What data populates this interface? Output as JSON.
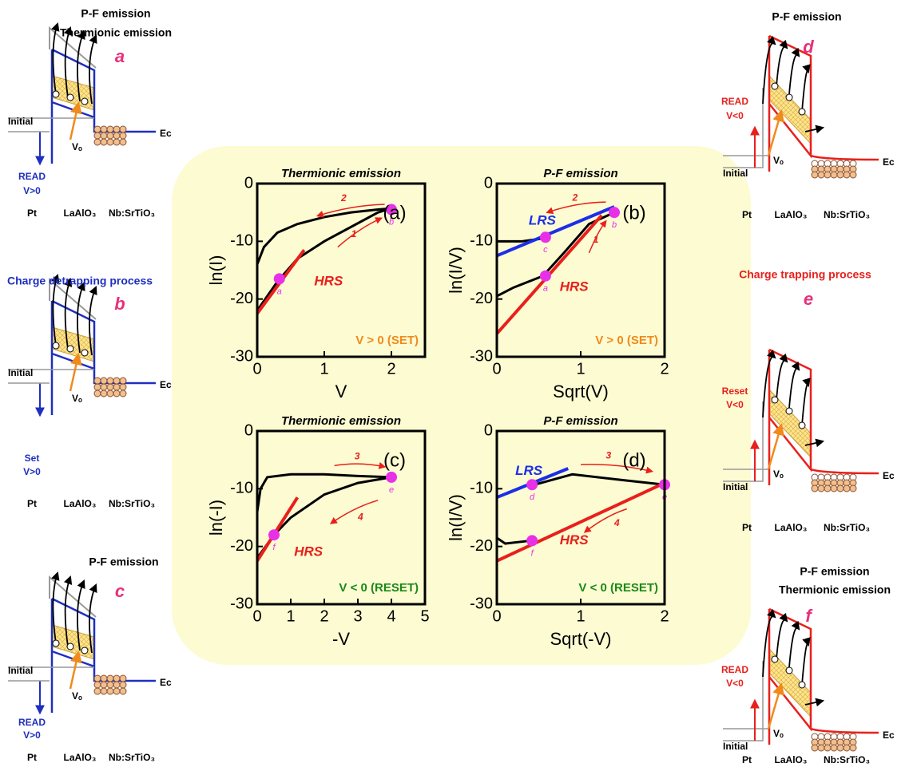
{
  "chart_data": [
    {
      "type": "line",
      "title": "Thermionic emission",
      "panel": "(a)",
      "xlabel": "V",
      "ylabel": "ln(I)",
      "xlim": [
        0,
        2.5
      ],
      "ylim": [
        -30,
        0
      ],
      "xticks": [
        0,
        1,
        2
      ],
      "yticks": [
        -30,
        -20,
        -10,
        0
      ],
      "regime": "V > 0 (SET)",
      "regime_color": "#f08a1c",
      "sweep_labels": [
        "2",
        "1"
      ],
      "series": [
        {
          "color": "#000000",
          "x": [
            0,
            0.1,
            0.3,
            0.6,
            1,
            1.4,
            1.8,
            2.0
          ],
          "values": [
            -14,
            -11,
            -8.5,
            -7,
            -5.8,
            -5,
            -4.5,
            -4.3
          ]
        },
        {
          "color": "#000000",
          "x": [
            0,
            0.3,
            0.6,
            1,
            1.4,
            1.8,
            2.0
          ],
          "values": [
            -22,
            -17,
            -13,
            -10,
            -7.5,
            -5,
            -4.3
          ]
        },
        {
          "name": "HRS",
          "color": "#e8201c",
          "x": [
            0,
            0.7
          ],
          "values": [
            -22.5,
            -11.5
          ]
        },
        {
          "type": "scatter",
          "color": "#e830e8",
          "x": [
            0.33,
            2.0
          ],
          "values": [
            -16.5,
            -4.5
          ],
          "labels": [
            "a",
            "b"
          ]
        }
      ]
    },
    {
      "type": "line",
      "title": "P-F emission",
      "panel": "(b)",
      "xlabel": "Sqrt(V)",
      "ylabel": "ln(I/V)",
      "xlim": [
        0,
        2
      ],
      "ylim": [
        -30,
        0
      ],
      "xticks": [
        0,
        1,
        2
      ],
      "yticks": [
        -30,
        -20,
        -10,
        0
      ],
      "regime": "V > 0 (SET)",
      "regime_color": "#f08a1c",
      "sweep_labels": [
        "2",
        "1"
      ],
      "series": [
        {
          "color": "#000000",
          "x": [
            0,
            0.3,
            0.55
          ],
          "values": [
            -10,
            -10,
            -9.5
          ]
        },
        {
          "color": "#000000",
          "x": [
            0,
            0.2,
            0.55,
            0.8,
            1.1,
            1.4
          ],
          "values": [
            -19.5,
            -18,
            -16,
            -12,
            -7,
            -5
          ]
        },
        {
          "name": "LRS",
          "color": "#1c2ee8",
          "x": [
            0,
            1.4
          ],
          "values": [
            -12.5,
            -4
          ]
        },
        {
          "name": "HRS",
          "color": "#e8201c",
          "x": [
            0,
            1.25
          ],
          "values": [
            -26,
            -5.5
          ]
        },
        {
          "type": "scatter",
          "color": "#e830e8",
          "x": [
            0.58,
            0.58,
            1.4
          ],
          "values": [
            -9.3,
            -16,
            -5
          ],
          "labels": [
            "c",
            "a",
            "b"
          ]
        }
      ]
    },
    {
      "type": "line",
      "title": "Thermionic emission",
      "panel": "(c)",
      "xlabel": "-V",
      "ylabel": "ln(-I)",
      "xlim": [
        0,
        5
      ],
      "ylim": [
        -30,
        0
      ],
      "xticks": [
        0,
        1,
        2,
        3,
        4,
        5
      ],
      "yticks": [
        -30,
        -20,
        -10,
        0
      ],
      "regime": "V < 0 (RESET)",
      "regime_color": "#1a8a1a",
      "sweep_labels": [
        "3",
        "4"
      ],
      "series": [
        {
          "color": "#000000",
          "x": [
            0,
            0.1,
            0.3,
            1,
            2,
            3,
            4
          ],
          "values": [
            -14,
            -10,
            -8,
            -7.5,
            -7.5,
            -7.8,
            -8
          ]
        },
        {
          "color": "#000000",
          "x": [
            0,
            0.5,
            1,
            2,
            3,
            4
          ],
          "values": [
            -22,
            -18,
            -15,
            -11,
            -9,
            -8
          ]
        },
        {
          "name": "HRS",
          "color": "#e8201c",
          "x": [
            0,
            1.2
          ],
          "values": [
            -22.5,
            -11.5
          ]
        },
        {
          "type": "scatter",
          "color": "#e830e8",
          "x": [
            0.5,
            4
          ],
          "values": [
            -18,
            -8
          ],
          "labels": [
            "f",
            "e"
          ]
        }
      ]
    },
    {
      "type": "line",
      "title": "P-F emission",
      "panel": "(d)",
      "xlabel": "Sqrt(-V)",
      "ylabel": "ln(I/V)",
      "xlim": [
        0,
        2
      ],
      "ylim": [
        -30,
        0
      ],
      "xticks": [
        0,
        1,
        2
      ],
      "yticks": [
        -30,
        -20,
        -10,
        0
      ],
      "regime": "V < 0 (RESET)",
      "regime_color": "#1a8a1a",
      "sweep_labels": [
        "3",
        "4"
      ],
      "series": [
        {
          "color": "#000000",
          "x": [
            0.4,
            0.9,
            1.5,
            2
          ],
          "values": [
            -9.5,
            -7.5,
            -8.5,
            -9.3
          ]
        },
        {
          "color": "#000000",
          "x": [
            0,
            0.1,
            0.4
          ],
          "values": [
            -18.5,
            -19.5,
            -19
          ]
        },
        {
          "name": "LRS",
          "color": "#1c2ee8",
          "x": [
            0,
            0.85
          ],
          "values": [
            -11.5,
            -6.5
          ]
        },
        {
          "name": "HRS",
          "color": "#e8201c",
          "x": [
            0,
            2
          ],
          "values": [
            -22.5,
            -9
          ]
        },
        {
          "type": "scatter",
          "color": "#e830e8",
          "x": [
            0.42,
            0.42,
            2
          ],
          "values": [
            -9.3,
            -19,
            -9.3
          ],
          "labels": [
            "d",
            "f",
            "e"
          ]
        }
      ]
    }
  ],
  "diagrams": [
    {
      "titles": [
        "P-F emission",
        "Thermionic emission"
      ],
      "letter": "a",
      "initial": "Initial",
      "bias": [
        "READ",
        "V>0"
      ],
      "vo": "Vₒ",
      "ec": "Ec",
      "materials": [
        "Pt",
        "LaAlO₃",
        "Nb:SrTiO₃"
      ]
    },
    {
      "titles": [
        "Charge detrapping process"
      ],
      "letter": "b",
      "initial": "Initial",
      "bias": [
        "Set",
        "V>0"
      ],
      "vo": "Vₒ",
      "ec": "Ec",
      "materials": [
        "Pt",
        "LaAlO₃",
        "Nb:SrTiO₃"
      ]
    },
    {
      "titles": [
        "P-F emission"
      ],
      "letter": "c",
      "initial": "Initial",
      "bias": [
        "READ",
        "V>0"
      ],
      "vo": "Vₒ",
      "ec": "Ec",
      "materials": [
        "Pt",
        "LaAlO₃",
        "Nb:SrTiO₃"
      ]
    },
    {
      "titles": [
        "P-F emission"
      ],
      "letter": "d",
      "initial": "Initial",
      "bias": [
        "READ",
        "V<0"
      ],
      "vo": "Vₒ",
      "ec": "Ec",
      "materials": [
        "Pt",
        "LaAlO₃",
        "Nb:SrTiO₃"
      ]
    },
    {
      "titles": [
        "Charge trapping process"
      ],
      "letter": "e",
      "initial": "Initial",
      "bias": [
        "Reset",
        "V<0"
      ],
      "vo": "Vₒ",
      "ec": "Ec",
      "materials": [
        "Pt",
        "LaAlO₃",
        "Nb:SrTiO₃"
      ]
    },
    {
      "titles": [
        "P-F emission",
        "Thermionic emission"
      ],
      "letter": "f",
      "initial": "Initial",
      "bias": [
        "READ",
        "V<0"
      ],
      "vo": "Vₒ",
      "ec": "Ec",
      "materials": [
        "Pt",
        "LaAlO₃",
        "Nb:SrTiO₃"
      ]
    }
  ]
}
